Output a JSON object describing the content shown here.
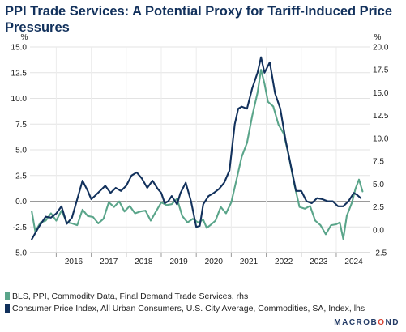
{
  "chart_data": {
    "type": "line",
    "title": "PPI Trade Services: A Potential Proxy for Tariff-Induced Price Pressures",
    "left_axis": {
      "unit": "%",
      "ylim": [
        -5.0,
        15.0
      ],
      "ticks": [
        15.0,
        12.5,
        10.0,
        7.5,
        5.0,
        2.5,
        0.0,
        -2.5,
        -5.0
      ]
    },
    "right_axis": {
      "unit": "%",
      "ylim": [
        -2.5,
        20.0
      ],
      "ticks": [
        20.0,
        17.5,
        15.0,
        12.5,
        10.0,
        7.5,
        5.0,
        2.5,
        0.0,
        -2.5
      ]
    },
    "x_axis": {
      "range": [
        2015.25,
        2024.95
      ],
      "tick_labels": [
        "2016",
        "2017",
        "2018",
        "2019",
        "2020",
        "2021",
        "2022",
        "2023",
        "2024"
      ]
    },
    "grid": true,
    "zero_line_left_axis": true,
    "series": [
      {
        "name": "BLS, PPI, Commodity Data, Final Demand Trade Services, rhs",
        "axis": "right",
        "color": "#5aa58a",
        "x": [
          2015.3,
          2015.4,
          2015.55,
          2015.7,
          2015.85,
          2016.0,
          2016.15,
          2016.3,
          2016.45,
          2016.6,
          2016.75,
          2016.9,
          2017.05,
          2017.2,
          2017.35,
          2017.5,
          2017.65,
          2017.8,
          2017.95,
          2018.1,
          2018.25,
          2018.4,
          2018.55,
          2018.7,
          2018.85,
          2019.0,
          2019.15,
          2019.3,
          2019.45,
          2019.6,
          2019.75,
          2019.9,
          2020.05,
          2020.2,
          2020.3,
          2020.4,
          2020.55,
          2020.7,
          2020.85,
          2021.0,
          2021.15,
          2021.3,
          2021.45,
          2021.6,
          2021.75,
          2021.85,
          2021.95,
          2022.05,
          2022.2,
          2022.35,
          2022.5,
          2022.65,
          2022.8,
          2022.95,
          2023.1,
          2023.25,
          2023.4,
          2023.55,
          2023.7,
          2023.85,
          2024.0,
          2024.1,
          2024.2,
          2024.3,
          2024.45,
          2024.55,
          2024.65,
          2024.75
        ],
        "y": [
          2.0,
          -0.2,
          0.8,
          1.0,
          1.8,
          1.0,
          2.1,
          0.8,
          0.7,
          0.5,
          2.2,
          1.5,
          1.4,
          0.7,
          1.2,
          3.0,
          2.5,
          3.1,
          2.0,
          2.6,
          1.8,
          2.0,
          2.1,
          1.0,
          2.0,
          3.0,
          2.7,
          2.8,
          3.4,
          1.5,
          0.8,
          1.2,
          0.8,
          1.1,
          0.2,
          0.5,
          1.0,
          2.5,
          1.8,
          3.0,
          5.5,
          8.0,
          9.5,
          12.5,
          15.0,
          17.5,
          16.0,
          14.0,
          13.5,
          11.5,
          10.5,
          8.0,
          5.0,
          2.5,
          2.3,
          2.6,
          1.0,
          0.5,
          -0.5,
          0.5,
          0.6,
          0.8,
          -1.0,
          1.5,
          3.0,
          4.5,
          5.5,
          4.2
        ]
      },
      {
        "name": "Consumer Price Index, All Urban Consumers, U.S. City Average, Commodities, SA, Index, lhs",
        "axis": "left",
        "color": "#12315c",
        "x": [
          2015.3,
          2015.5,
          2015.7,
          2015.85,
          2016.0,
          2016.15,
          2016.3,
          2016.45,
          2016.6,
          2016.75,
          2016.9,
          2017.0,
          2017.1,
          2017.25,
          2017.4,
          2017.55,
          2017.7,
          2017.85,
          2018.0,
          2018.15,
          2018.3,
          2018.45,
          2018.6,
          2018.75,
          2018.9,
          2019.0,
          2019.1,
          2019.2,
          2019.3,
          2019.45,
          2019.55,
          2019.7,
          2019.85,
          2020.0,
          2020.1,
          2020.2,
          2020.35,
          2020.5,
          2020.65,
          2020.8,
          2020.95,
          2021.1,
          2021.2,
          2021.3,
          2021.45,
          2021.6,
          2021.75,
          2021.85,
          2021.95,
          2022.1,
          2022.25,
          2022.4,
          2022.55,
          2022.7,
          2022.85,
          2023.0,
          2023.15,
          2023.3,
          2023.45,
          2023.6,
          2023.75,
          2023.9,
          2024.05,
          2024.2,
          2024.35,
          2024.5,
          2024.6,
          2024.7
        ],
        "y": [
          -3.7,
          -2.5,
          -1.5,
          -1.6,
          -1.2,
          -0.5,
          -2.2,
          -1.6,
          0.2,
          2.0,
          1.0,
          0.2,
          0.5,
          1.0,
          1.5,
          0.8,
          1.3,
          1.0,
          1.5,
          2.5,
          2.8,
          2.2,
          1.3,
          2.0,
          1.2,
          0.8,
          -0.2,
          0.0,
          0.5,
          -0.3,
          0.8,
          1.8,
          0.0,
          -2.5,
          -2.4,
          -0.3,
          0.5,
          0.8,
          1.2,
          1.8,
          3.0,
          7.5,
          9.0,
          9.2,
          9.0,
          11.0,
          12.5,
          14.0,
          12.5,
          13.5,
          10.5,
          9.0,
          6.0,
          3.5,
          1.0,
          1.0,
          0.0,
          -0.2,
          0.3,
          0.2,
          0.0,
          0.0,
          -0.5,
          -0.5,
          0.0,
          0.8,
          0.6,
          0.3
        ]
      }
    ]
  },
  "legend": [
    {
      "label": "BLS, PPI, Commodity Data, Final Demand Trade Services, rhs",
      "color": "#5aa58a"
    },
    {
      "label": "Consumer Price Index, All Urban Consumers, U.S. City Average, Commodities, SA, Index, lhs",
      "color": "#12315c"
    }
  ],
  "brand": {
    "main": "MACROB",
    "accent": "O",
    "end": "ND"
  }
}
